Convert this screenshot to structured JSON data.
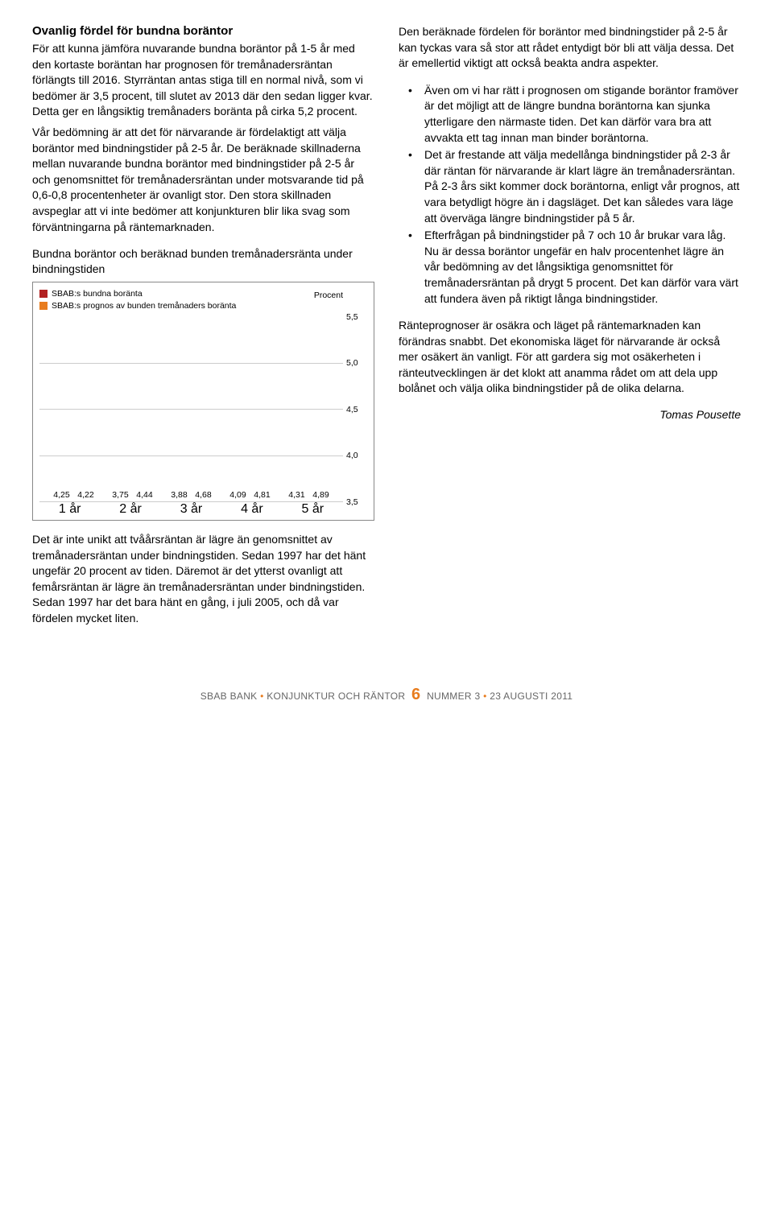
{
  "left": {
    "heading": "Ovanlig fördel för bundna boräntor",
    "p1": "För att kunna jämföra nuvarande bundna boräntor på 1-5 år med den kortaste boräntan har prognosen för tremånadersräntan förlängts till 2016. Styrräntan antas stiga till en normal nivå, som vi bedömer är 3,5 procent, till slutet av 2013 där den sedan ligger kvar. Detta ger en långsiktig tremånaders boränta på cirka 5,2 procent.",
    "p2": "Vår bedömning är att det för närvarande är fördelaktigt att välja boräntor med bindningstider på 2-5 år. De beräknade skillnaderna mellan nuvarande bundna boräntor med bindningstider på 2-5 år och genomsnittet för tremånadersräntan under motsvarande tid på 0,6-0,8 procentenheter är ovanligt stor. Den stora skillnaden avspeglar att vi inte bedömer att konjunkturen blir lika svag som förväntningarna på räntemarknaden.",
    "chart_title": "Bundna boräntor och beräknad bunden tremånadersränta under bindningstiden",
    "p3": "Det är inte unikt att tvåårsräntan är lägre än genomsnittet av tremånadersräntan under bindningstiden. Sedan 1997 har det hänt ungefär 20 procent av tiden. Däremot är det ytterst ovanligt att femårsräntan är lägre än tremånadersräntan under bindningstiden. Sedan 1997 har det bara hänt en gång, i juli 2005, och då var fördelen mycket liten."
  },
  "right": {
    "p1": "Den beräknade fördelen för boräntor med bindningstider på 2-5 år kan tyckas vara så stor att rådet entydigt bör bli att välja dessa. Det är emellertid viktigt att också beakta andra aspekter.",
    "b1": "Även om vi har rätt i prognosen om stigande boräntor framöver är det möjligt att de längre bundna boräntorna kan sjunka ytterligare den närmaste tiden. Det kan därför vara bra att avvakta ett tag innan man binder boräntorna.",
    "b2": "Det är frestande att välja medellånga bindningstider på 2-3 år där räntan för närvarande är klart lägre än tremånadersräntan. På 2-3 års sikt kommer dock boräntorna, enligt vår prognos, att vara betydligt högre än i dagsläget. Det kan således vara läge att överväga längre bindningstider på 5 år.",
    "b3": "Efterfrågan på bindningstider på 7 och 10 år brukar vara låg. Nu är dessa boräntor ungefär en halv procentenhet lägre än vår bedömning av det långsiktiga genomsnittet för tremånadersräntan på drygt 5 procent. Det kan därför vara värt att fundera även på riktigt långa bindningstider.",
    "p2": "Ränteprognoser är osäkra och läget på räntemarknaden kan förändras snabbt. Det ekonomiska läget för närvarande är också mer osäkert än vanligt. För att gardera sig mot osäkerheten i ränteutvecklingen är det klokt att anamma rådet om att dela upp bolånet och välja olika bindningstider på de olika delarna.",
    "author": "Tomas Pousette"
  },
  "chart": {
    "legend1": "SBAB:s bundna boränta",
    "legend2": "SBAB:s prognos av bunden tremånaders boränta",
    "procent": "Procent",
    "color_red": "#b22222",
    "color_orange": "#e87c1e",
    "grid_color": "#cccccc",
    "ymin": 3.5,
    "ymax": 5.5,
    "ytick_step": 0.5,
    "categories": [
      "1 år",
      "2 år",
      "3 år",
      "4 år",
      "5 år"
    ],
    "series_red": [
      4.25,
      3.75,
      3.88,
      4.09,
      4.31
    ],
    "series_orange": [
      4.22,
      4.44,
      4.68,
      4.81,
      4.89
    ],
    "labels_red": [
      "4,25",
      "3,75",
      "3,88",
      "4,09",
      "4,31"
    ],
    "labels_orange": [
      "4,22",
      "4,44",
      "4,68",
      "4,81",
      "4,89"
    ],
    "yticks_labels": [
      "5,5",
      "5,0",
      "4,5",
      "4,0",
      "3,5"
    ]
  },
  "footer": {
    "left1": "SBAB BANK",
    "dot": " • ",
    "left2": "KONJUNKTUR OCH RÄNTOR",
    "page": "6",
    "right1": "NUMMER 3",
    "right2": "23 AUGUSTI 2011"
  }
}
